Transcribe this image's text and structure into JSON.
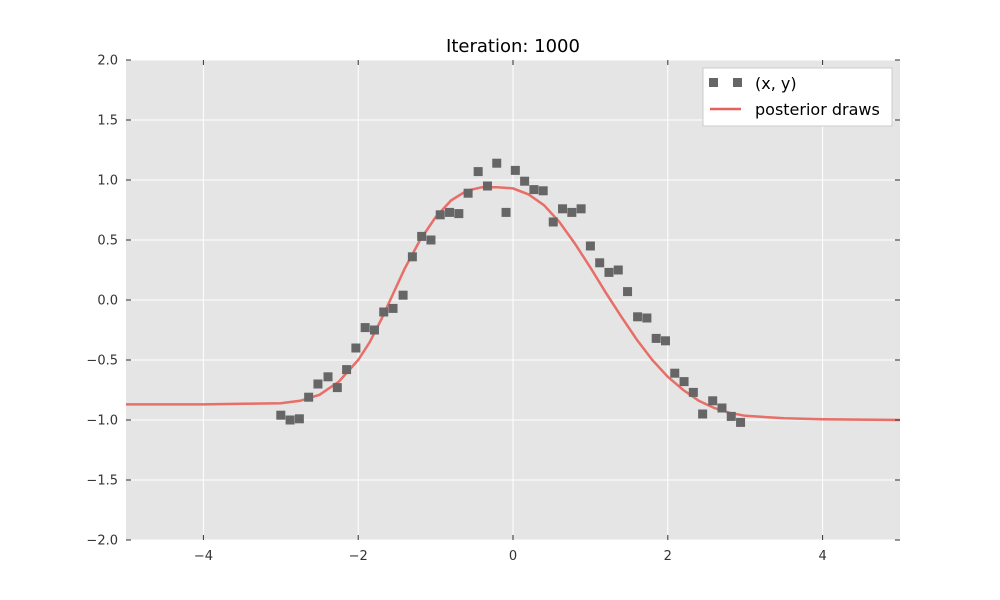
{
  "chart_data": {
    "type": "scatter",
    "title": "Iteration: 1000",
    "xlabel": "",
    "ylabel": "",
    "xlim": [
      -5,
      5
    ],
    "ylim": [
      -2,
      2
    ],
    "xticks": [
      -4,
      -2,
      0,
      2,
      4
    ],
    "yticks": [
      -2.0,
      -1.5,
      -1.0,
      -0.5,
      0.0,
      0.5,
      1.0,
      1.5,
      2.0
    ],
    "xtick_labels": [
      "−4",
      "−2",
      "0",
      "2",
      "4"
    ],
    "ytick_labels": [
      "−2.0",
      "−1.5",
      "−1.0",
      "−0.5",
      "0.0",
      "0.5",
      "1.0",
      "1.5",
      "2.0"
    ],
    "grid": true,
    "legend_position": "top-right",
    "background": "#e5e5e5",
    "series": [
      {
        "name": "(x, y)",
        "kind": "scatter",
        "marker": "square",
        "color": "#666666",
        "x": [
          -3.0,
          -2.88,
          -2.76,
          -2.64,
          -2.52,
          -2.39,
          -2.27,
          -2.15,
          -2.03,
          -1.91,
          -1.79,
          -1.67,
          -1.55,
          -1.42,
          -1.3,
          -1.18,
          -1.06,
          -0.94,
          -0.82,
          -0.7,
          -0.58,
          -0.45,
          -0.33,
          -0.21,
          -0.09,
          0.03,
          0.15,
          0.27,
          0.39,
          0.52,
          0.64,
          0.76,
          0.88,
          1.0,
          1.12,
          1.24,
          1.36,
          1.48,
          1.61,
          1.73,
          1.85,
          1.97,
          2.09,
          2.21,
          2.33,
          2.45,
          2.58,
          2.7,
          2.82,
          2.94
        ],
        "y": [
          -0.96,
          -1.0,
          -0.99,
          -0.81,
          -0.7,
          -0.64,
          -0.73,
          -0.58,
          -0.4,
          -0.23,
          -0.25,
          -0.1,
          -0.07,
          0.04,
          0.36,
          0.53,
          0.5,
          0.71,
          0.73,
          0.72,
          0.89,
          1.07,
          0.95,
          1.14,
          0.73,
          1.08,
          0.99,
          0.92,
          0.91,
          0.65,
          0.76,
          0.73,
          0.76,
          0.45,
          0.31,
          0.23,
          0.25,
          0.07,
          -0.14,
          -0.15,
          -0.32,
          -0.34,
          -0.61,
          -0.68,
          -0.77,
          -0.95,
          -0.84,
          -0.9,
          -0.97,
          -1.02
        ]
      },
      {
        "name": "posterior draws",
        "kind": "line",
        "color": "#e8605a",
        "x": [
          -5.0,
          -4.5,
          -4.0,
          -3.5,
          -3.0,
          -2.75,
          -2.5,
          -2.25,
          -2.0,
          -1.85,
          -1.7,
          -1.55,
          -1.4,
          -1.2,
          -1.0,
          -0.8,
          -0.6,
          -0.4,
          -0.2,
          0.0,
          0.2,
          0.4,
          0.6,
          0.8,
          1.0,
          1.2,
          1.4,
          1.6,
          1.8,
          2.0,
          2.2,
          2.4,
          2.6,
          2.8,
          3.0,
          3.5,
          4.0,
          4.5,
          5.0
        ],
        "y": [
          -0.87,
          -0.87,
          -0.87,
          -0.865,
          -0.86,
          -0.84,
          -0.79,
          -0.68,
          -0.5,
          -0.35,
          -0.16,
          0.05,
          0.26,
          0.5,
          0.69,
          0.83,
          0.91,
          0.94,
          0.94,
          0.93,
          0.88,
          0.79,
          0.65,
          0.47,
          0.27,
          0.06,
          -0.14,
          -0.33,
          -0.5,
          -0.64,
          -0.75,
          -0.84,
          -0.9,
          -0.94,
          -0.965,
          -0.985,
          -0.993,
          -0.997,
          -1.0
        ]
      }
    ]
  }
}
